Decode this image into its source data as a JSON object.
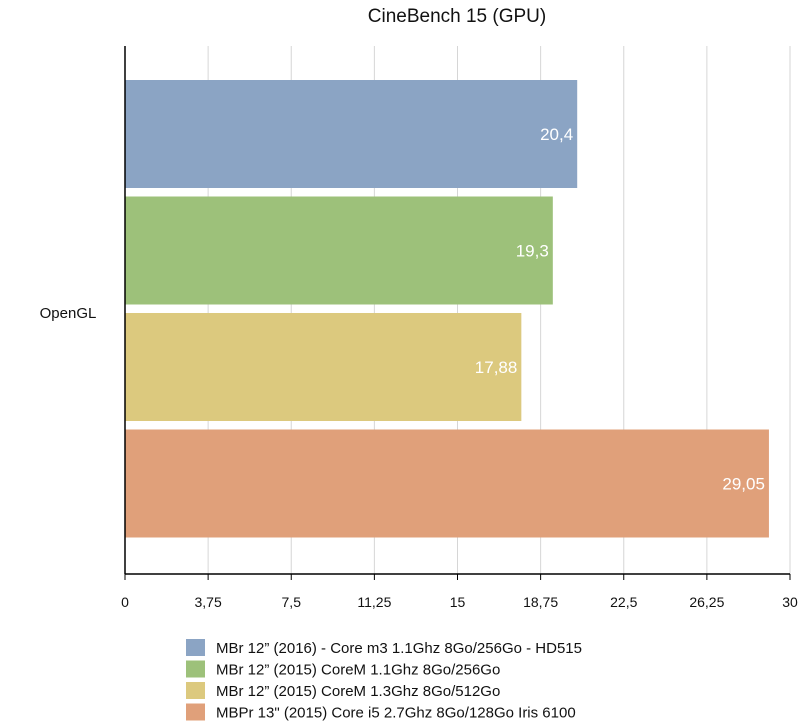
{
  "chart_data": {
    "type": "bar",
    "orientation": "horizontal",
    "title": "CineBench 15 (GPU)",
    "xlabel": "",
    "ylabel": "",
    "categories": [
      "OpenGL"
    ],
    "xlim": [
      0,
      30
    ],
    "x_ticks": [
      0,
      3.75,
      7.5,
      11.25,
      15,
      18.75,
      22.5,
      26.25,
      30
    ],
    "x_tick_labels": [
      "0",
      "3,75",
      "7,5",
      "11,25",
      "15",
      "18,75",
      "22,5",
      "26,25",
      "30"
    ],
    "grid": "vertical",
    "legend_position": "bottom",
    "series": [
      {
        "name": "MBr 12” (2016) - Core m3 1.1Ghz  8Go/256Go - HD515",
        "values": [
          20.4
        ],
        "label": "20,4",
        "color": "#8ba4c4"
      },
      {
        "name": "MBr 12” (2015) CoreM 1.1Ghz 8Go/256Go",
        "values": [
          19.3
        ],
        "label": "19,3",
        "color": "#9dc17a"
      },
      {
        "name": "MBr 12” (2015) CoreM 1.3Ghz 8Go/512Go",
        "values": [
          17.88
        ],
        "label": "17,88",
        "color": "#dcc97e"
      },
      {
        "name": "MBPr 13\" (2015) Core i5 2.7Ghz 8Go/128Go Iris 6100",
        "values": [
          29.05
        ],
        "label": "29,05",
        "color": "#e0a07a"
      }
    ]
  }
}
